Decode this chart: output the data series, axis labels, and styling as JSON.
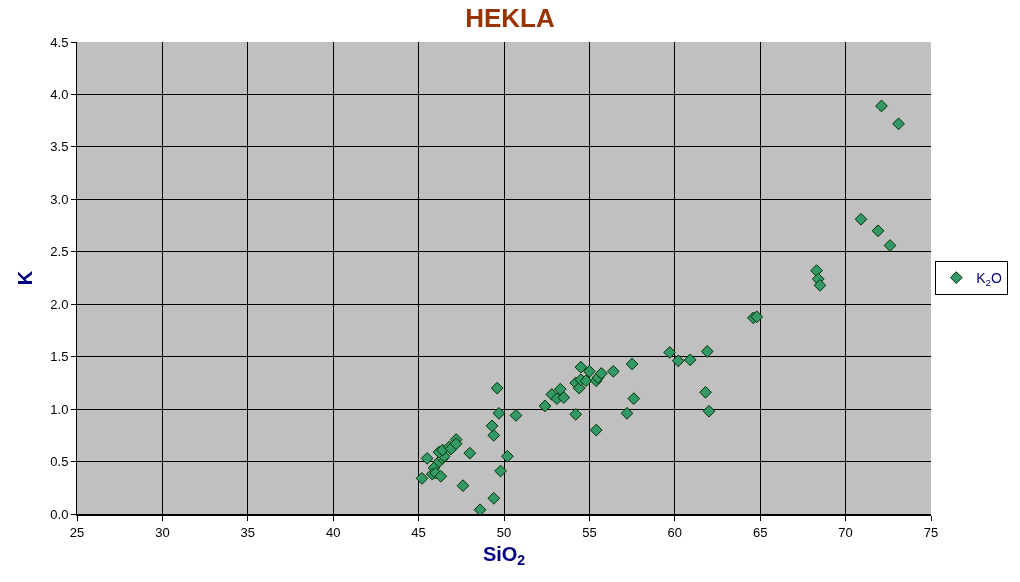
{
  "chart_data": {
    "type": "scatter",
    "title": "HEKLA",
    "xlabel": "SiO$_{2}$",
    "ylabel": "K",
    "xlim": [
      25,
      75
    ],
    "xticks": [
      25,
      30,
      35,
      40,
      45,
      50,
      55,
      60,
      65,
      70,
      75
    ],
    "ylim": [
      0,
      4.5
    ],
    "yticks": [
      {
        "value": 0,
        "label": "0.0"
      },
      {
        "value": 0.5,
        "label": "0.5"
      },
      {
        "value": 1,
        "label": "1.0"
      },
      {
        "value": 1.5,
        "label": "1.5"
      },
      {
        "value": 2,
        "label": "2.0"
      },
      {
        "value": 2.5,
        "label": "2.5"
      },
      {
        "value": 3,
        "label": "3.0"
      },
      {
        "value": 3.5,
        "label": "3.5"
      },
      {
        "value": 4,
        "label": "4.0"
      },
      {
        "value": 4.5,
        "label": "4.5"
      }
    ],
    "grid": true,
    "legend": "right",
    "marker": "diamond",
    "series": [
      {
        "name": "K$_{2}$O",
        "color": "#339966",
        "x": [
          45.2,
          45.5,
          45.9,
          45.8,
          46.0,
          46.3,
          46.2,
          46.4,
          46.5,
          46.2,
          46.4,
          46.8,
          46.9,
          47.2,
          47.2,
          48.0,
          47.6,
          48.6,
          49.4,
          49.8,
          50.2,
          49.4,
          49.3,
          49.7,
          49.6,
          50.7,
          52.4,
          52.8,
          53.1,
          53.3,
          53.5,
          54.2,
          54.2,
          54.4,
          54.5,
          54.5,
          54.8,
          55.0,
          55.4,
          55.5,
          55.7,
          55.4,
          56.4,
          57.5,
          57.6,
          57.2,
          59.7,
          60.2,
          60.9,
          61.9,
          61.8,
          62.0,
          64.6,
          64.8,
          68.3,
          68.4,
          68.5,
          70.9,
          71.9,
          72.6,
          72.1,
          73.1
        ],
        "values": [
          0.34,
          0.53,
          0.44,
          0.38,
          0.39,
          0.36,
          0.5,
          0.53,
          0.55,
          0.59,
          0.61,
          0.64,
          0.62,
          0.71,
          0.67,
          0.58,
          0.27,
          0.04,
          0.15,
          0.41,
          0.55,
          0.75,
          0.84,
          0.96,
          1.2,
          0.94,
          1.03,
          1.14,
          1.1,
          1.19,
          1.11,
          0.95,
          1.25,
          1.2,
          1.28,
          1.4,
          1.27,
          1.36,
          1.27,
          1.3,
          1.34,
          0.8,
          1.36,
          1.43,
          1.1,
          0.96,
          1.54,
          1.46,
          1.47,
          1.55,
          1.16,
          0.98,
          1.87,
          1.88,
          2.32,
          2.24,
          2.18,
          2.81,
          2.7,
          2.56,
          3.89,
          3.72
        ]
      }
    ]
  }
}
